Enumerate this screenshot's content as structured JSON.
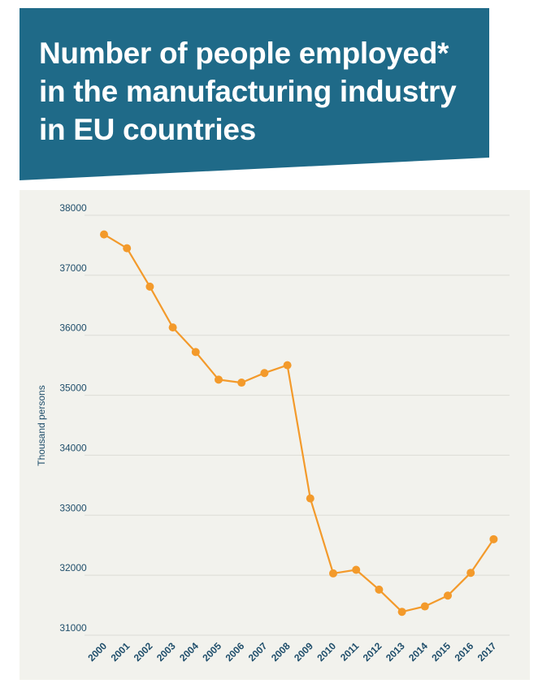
{
  "header": {
    "title": "Number of people employed*\nin the manufacturing industry\nin EU countries",
    "background_color": "#1f6a88"
  },
  "chart_data": {
    "type": "line",
    "title": "Number of people employed* in the manufacturing industry in EU countries",
    "ylabel": "Thousand persons",
    "xlabel": "",
    "ylim": [
      31000,
      38000
    ],
    "yticks": [
      31000,
      32000,
      33000,
      34000,
      35000,
      36000,
      37000,
      38000
    ],
    "x": [
      "2000",
      "2001",
      "2002",
      "2003",
      "2004",
      "2005",
      "2006",
      "2007",
      "2008",
      "2009",
      "2010",
      "2011",
      "2012",
      "2013",
      "2014",
      "2015",
      "2016",
      "2017"
    ],
    "series": [
      {
        "values": [
          37680,
          37450,
          36810,
          36130,
          35720,
          35260,
          35210,
          35370,
          35500,
          33280,
          32030,
          32090,
          31760,
          31390,
          31480,
          31660,
          32040,
          32600
        ]
      }
    ],
    "line_color": "#f39a2b",
    "grid": true,
    "legend": "none"
  }
}
